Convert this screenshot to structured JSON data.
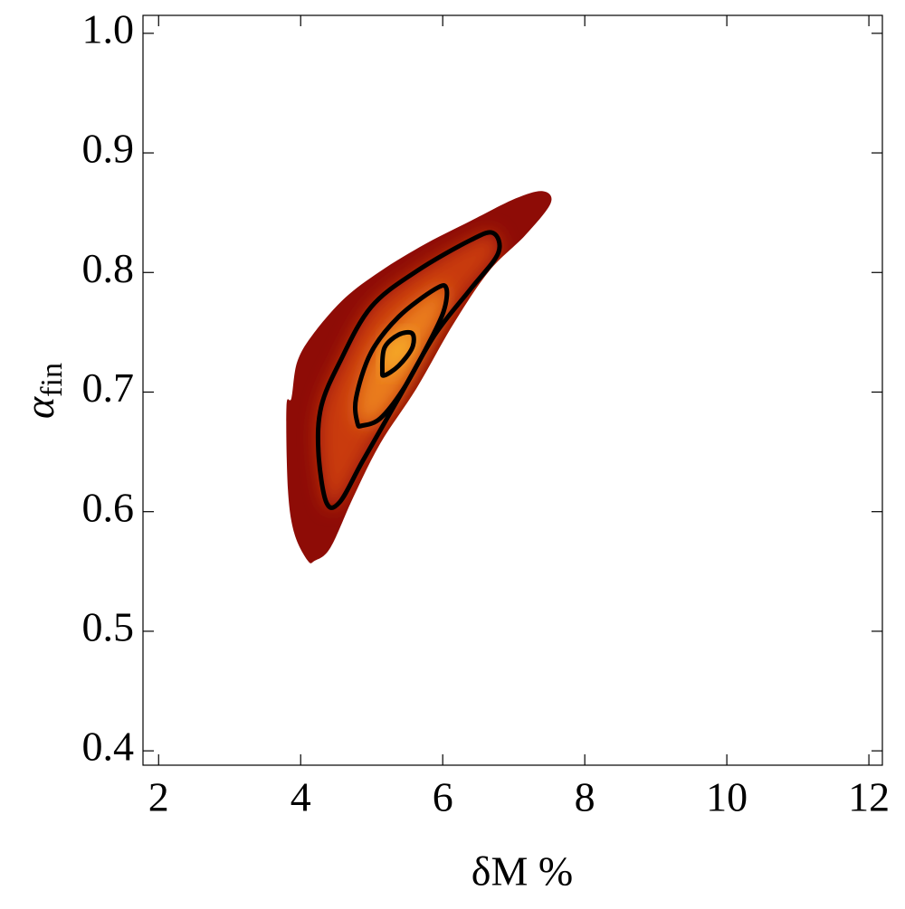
{
  "chart_data": {
    "type": "density",
    "x_label": "δM %",
    "y_label": "α",
    "y_label_subscript": "fin",
    "xlim": [
      1.78,
      12.19
    ],
    "ylim": [
      0.388,
      1.015
    ],
    "xticks": [
      2,
      4,
      6,
      8,
      10,
      12
    ],
    "yticks": [
      0.4,
      0.5,
      0.6,
      0.7,
      0.8,
      0.9,
      {
        "value": 1,
        "label": "1.0"
      }
    ],
    "outline_color": "#000000",
    "regions": [
      {
        "color": "#8e0c06",
        "outline": false,
        "x": [
          4.1,
          3.91,
          3.82,
          3.8,
          3.87,
          3.95,
          4.17,
          4.61,
          5.12,
          5.76,
          6.39,
          7.03,
          7.41,
          7.52,
          7.16,
          6.65,
          6.14,
          5.63,
          5.12,
          4.74,
          4.42,
          4.2
        ],
        "y": [
          0.559,
          0.582,
          0.619,
          0.688,
          0.695,
          0.725,
          0.748,
          0.778,
          0.801,
          0.824,
          0.843,
          0.862,
          0.868,
          0.858,
          0.831,
          0.801,
          0.756,
          0.703,
          0.657,
          0.612,
          0.57,
          0.559
        ]
      },
      {
        "color": "#c93a0c",
        "outline": true,
        "x": [
          4.36,
          4.25,
          4.29,
          4.55,
          4.99,
          5.63,
          6.39,
          6.71,
          6.78,
          6.39,
          5.89,
          5.38,
          4.87,
          4.55
        ],
        "y": [
          0.608,
          0.65,
          0.688,
          0.725,
          0.771,
          0.801,
          0.827,
          0.833,
          0.816,
          0.786,
          0.748,
          0.695,
          0.642,
          0.608
        ]
      },
      {
        "color": "#ea7d1c",
        "outline": true,
        "x": [
          4.8,
          4.78,
          4.99,
          5.38,
          5.89,
          6.05,
          6.01,
          5.76,
          5.44,
          5.12,
          4.87
        ],
        "y": [
          0.674,
          0.695,
          0.733,
          0.763,
          0.786,
          0.787,
          0.767,
          0.736,
          0.702,
          0.678,
          0.672
        ]
      },
      {
        "color": "#f7ad2c",
        "outline": true,
        "x": [
          5.15,
          5.18,
          5.38,
          5.57,
          5.57,
          5.38,
          5.18
        ],
        "y": [
          0.718,
          0.737,
          0.748,
          0.749,
          0.737,
          0.722,
          0.714
        ]
      }
    ]
  }
}
